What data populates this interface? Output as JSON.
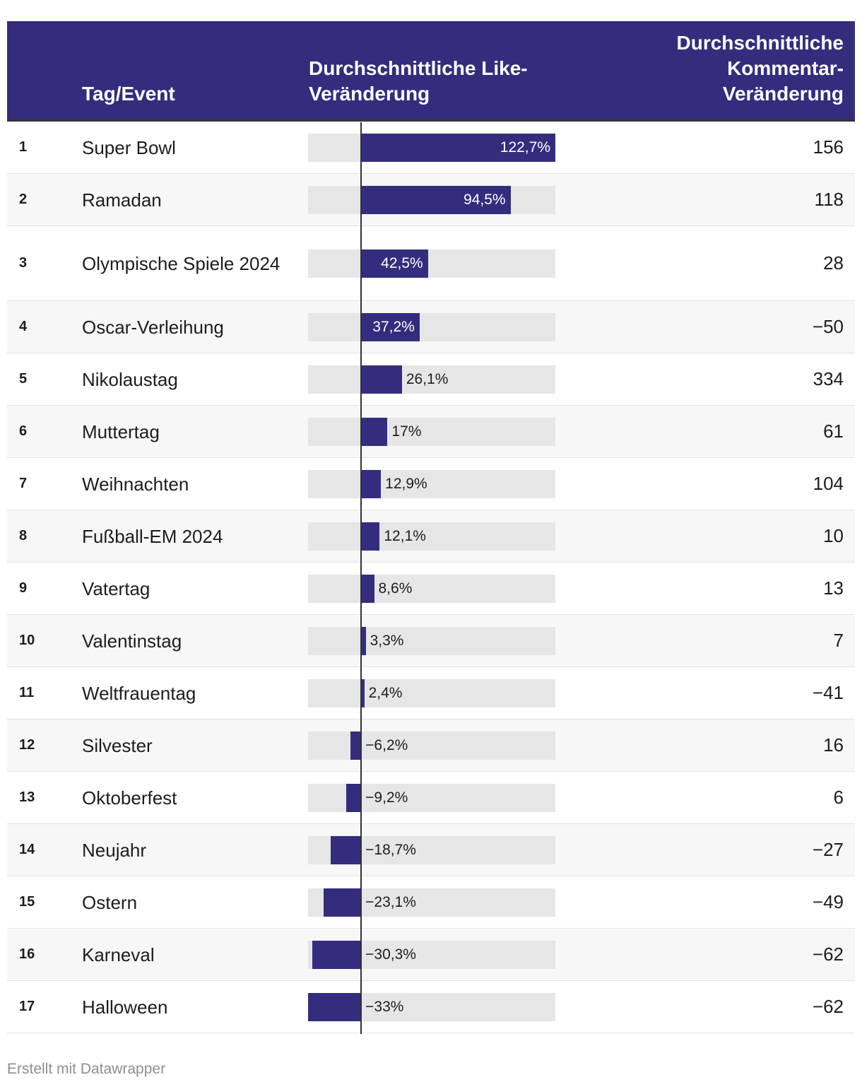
{
  "header": {
    "event": "Tag/Event",
    "like_line1": "Durchschnittliche Like-",
    "like_line2": "Veränderung",
    "comment_line1": "Durchschnittliche",
    "comment_line2": "Kommentar-",
    "comment_line3": "Veränderung"
  },
  "footer": "Erstellt mit Datawrapper",
  "colors": {
    "header_bg": "#342d7e",
    "bar": "#342d7e",
    "bar_bg": "#e6e6e6"
  },
  "chart_data": {
    "type": "table",
    "columns": [
      "",
      "Tag/Event",
      "Durchschnittliche Like-Veränderung",
      "Durchschnittliche Kommentar-Veränderung"
    ],
    "bar_range": [
      -33,
      122.7
    ],
    "rows": [
      {
        "rank": "1",
        "event": "Super Bowl",
        "like": 122.7,
        "like_label": "122,7%",
        "comment": "156"
      },
      {
        "rank": "2",
        "event": "Ramadan",
        "like": 94.5,
        "like_label": "94,5%",
        "comment": "118"
      },
      {
        "rank": "3",
        "event": "Olympische Spiele 2024",
        "like": 42.5,
        "like_label": "42,5%",
        "comment": "28"
      },
      {
        "rank": "4",
        "event": "Oscar-Verleihung",
        "like": 37.2,
        "like_label": "37,2%",
        "comment": "−50"
      },
      {
        "rank": "5",
        "event": "Nikolaustag",
        "like": 26.1,
        "like_label": "26,1%",
        "comment": "334"
      },
      {
        "rank": "6",
        "event": "Muttertag",
        "like": 17,
        "like_label": "17%",
        "comment": "61"
      },
      {
        "rank": "7",
        "event": "Weihnachten",
        "like": 12.9,
        "like_label": "12,9%",
        "comment": "104"
      },
      {
        "rank": "8",
        "event": "Fußball-EM 2024",
        "like": 12.1,
        "like_label": "12,1%",
        "comment": "10"
      },
      {
        "rank": "9",
        "event": "Vatertag",
        "like": 8.6,
        "like_label": "8,6%",
        "comment": "13"
      },
      {
        "rank": "10",
        "event": "Valentinstag",
        "like": 3.3,
        "like_label": "3,3%",
        "comment": "7"
      },
      {
        "rank": "11",
        "event": "Weltfrauentag",
        "like": 2.4,
        "like_label": "2,4%",
        "comment": "−41"
      },
      {
        "rank": "12",
        "event": "Silvester",
        "like": -6.2,
        "like_label": "−6,2%",
        "comment": "16"
      },
      {
        "rank": "13",
        "event": "Oktoberfest",
        "like": -9.2,
        "like_label": "−9,2%",
        "comment": "6"
      },
      {
        "rank": "14",
        "event": "Neujahr",
        "like": -18.7,
        "like_label": "−18,7%",
        "comment": "−27"
      },
      {
        "rank": "15",
        "event": "Ostern",
        "like": -23.1,
        "like_label": "−23,1%",
        "comment": "−49"
      },
      {
        "rank": "16",
        "event": "Karneval",
        "like": -30.3,
        "like_label": "−30,3%",
        "comment": "−62"
      },
      {
        "rank": "17",
        "event": "Halloween",
        "like": -33,
        "like_label": "−33%",
        "comment": "−62"
      }
    ]
  }
}
